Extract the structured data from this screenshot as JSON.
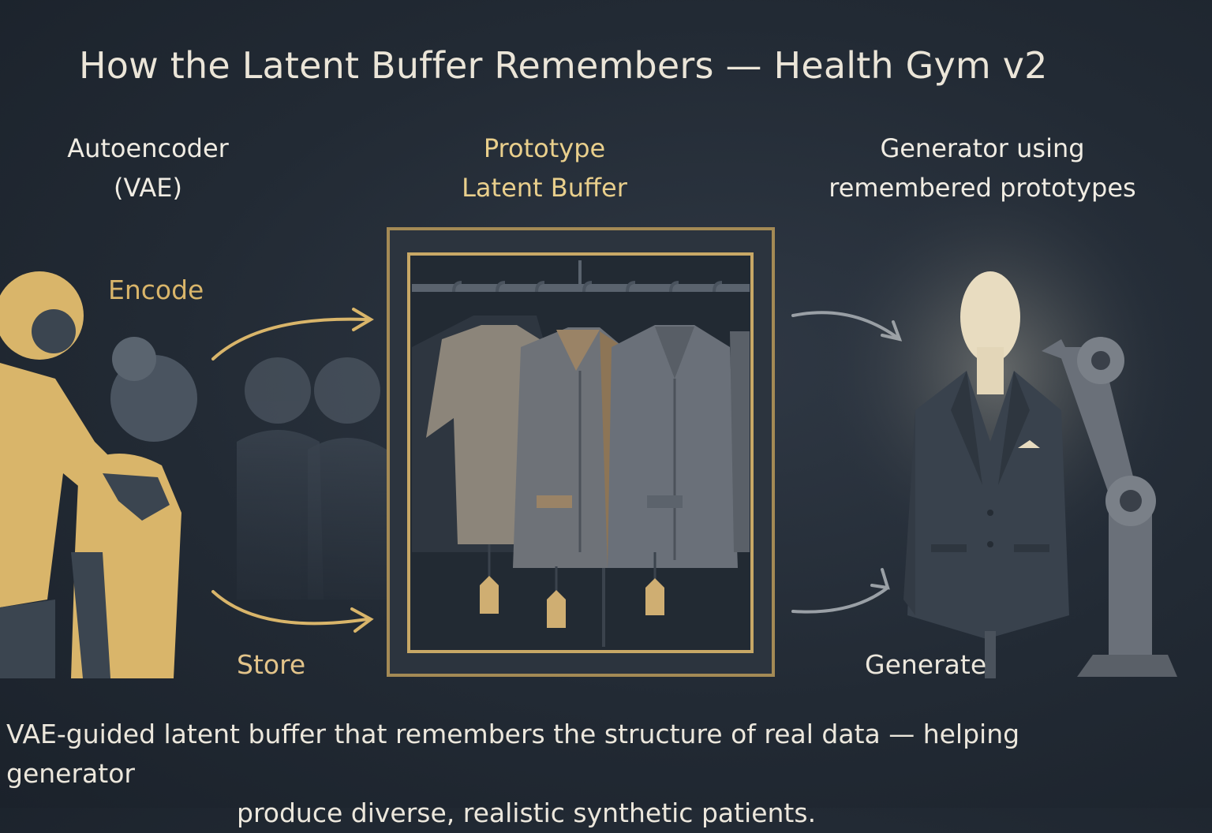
{
  "title": "How the Latent Buffer Remembers — Health Gym v2",
  "columns": {
    "vae": {
      "line1": "Autoencoder",
      "line2": "(VAE)"
    },
    "buffer": {
      "line1": "Prototype",
      "line2": "Latent Buffer"
    },
    "generator": {
      "line1": "Generator using",
      "line2": "remembered prototypes"
    }
  },
  "steps": {
    "encode": "Encode",
    "store": "Store",
    "generate": "Generate"
  },
  "caption": {
    "line1": "VAE-guided latent buffer that remembers the structure of real data — helping generator",
    "line2": "produce diverse, realistic synthetic patients."
  },
  "colors": {
    "background": "#222a34",
    "accent_gold": "#d9b56a",
    "frame_gold": "#a48a55",
    "slate": "#3b4550",
    "mannequin_head": "#e8dcc0"
  },
  "icons": [
    "people-silhouettes-icon",
    "ghost-people-icon",
    "wardrobe-icon",
    "clothes-hanger-icon",
    "price-tag-icon",
    "mannequin-icon",
    "suit-jacket-icon",
    "robot-arm-icon",
    "arrow-icon"
  ]
}
